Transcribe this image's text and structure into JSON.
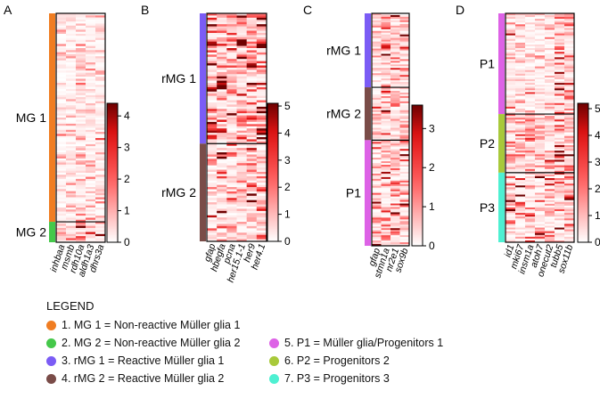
{
  "chart_data": [
    {
      "type": "heatmap",
      "panel": "A",
      "columns": [
        "inhbaa",
        "msmb",
        "rdh10a",
        "aldh1a3",
        "dhrs3a"
      ],
      "groups": [
        {
          "label": "MG 1",
          "color": "#f07d22",
          "rows": 102
        },
        {
          "label": "MG 2",
          "color": "#45c84a",
          "rows": 10
        }
      ],
      "colorbar": {
        "ticks": [
          0,
          1,
          2,
          3,
          4
        ],
        "range": [
          0,
          4.4
        ]
      },
      "column_mean_expression": {
        "MG 1": [
          0.5,
          0.6,
          0.7,
          0.6,
          0.5
        ],
        "MG 2": [
          1.3,
          0.9,
          2.2,
          1.2,
          0.7
        ]
      }
    },
    {
      "type": "heatmap",
      "panel": "B",
      "columns": [
        "gfap",
        "hbegfa",
        "pcna",
        "her15.1-1",
        "her9",
        "her4.1"
      ],
      "groups": [
        {
          "label": "rMG 1",
          "color": "#7b5cf5",
          "rows": 60
        },
        {
          "label": "rMG 2",
          "color": "#7a4c48",
          "rows": 45
        }
      ],
      "colorbar": {
        "ticks": [
          0,
          1,
          2,
          3,
          4,
          5
        ],
        "range": [
          0,
          5.1
        ]
      },
      "column_mean_expression": {
        "rMG 1": [
          2.6,
          2.2,
          2.3,
          2.5,
          2.8,
          3.0
        ],
        "rMG 2": [
          1.0,
          1.5,
          1.4,
          1.0,
          1.7,
          1.8
        ]
      }
    },
    {
      "type": "heatmap",
      "panel": "C",
      "columns": [
        "gfap",
        "stmn1a",
        "nr2e1",
        "sox9b"
      ],
      "groups": [
        {
          "label": "rMG 1",
          "color": "#7b5cf5",
          "rows": 42
        },
        {
          "label": "rMG 2",
          "color": "#7a4c48",
          "rows": 30
        },
        {
          "label": "P1",
          "color": "#dd62e6",
          "rows": 60
        }
      ],
      "colorbar": {
        "ticks": [
          0,
          1,
          2,
          3
        ],
        "range": [
          0,
          3.6
        ]
      },
      "column_mean_expression": {
        "rMG 1": [
          0.8,
          0.9,
          1.0,
          1.1
        ],
        "rMG 2": [
          0.7,
          0.8,
          0.9,
          0.9
        ],
        "P1": [
          1.1,
          1.2,
          1.4,
          1.0
        ]
      }
    },
    {
      "type": "heatmap",
      "panel": "D",
      "columns": [
        "id1",
        "mki67",
        "insm1a",
        "atoh7",
        "onecut2",
        "tubb5",
        "sox11b"
      ],
      "groups": [
        {
          "label": "P1",
          "color": "#dd62e6",
          "rows": 55
        },
        {
          "label": "P2",
          "color": "#a8c93a",
          "rows": 32
        },
        {
          "label": "P3",
          "color": "#4ef0d2",
          "rows": 38
        }
      ],
      "colorbar": {
        "ticks": [
          0,
          1,
          2,
          3,
          4,
          5
        ],
        "range": [
          0,
          5.2
        ]
      },
      "column_mean_expression": {
        "P1": [
          1.2,
          0.7,
          0.6,
          0.8,
          0.9,
          1.6,
          1.3
        ],
        "P2": [
          1.1,
          2.0,
          1.8,
          1.5,
          1.6,
          2.0,
          1.9
        ],
        "P3": [
          1.5,
          1.2,
          1.3,
          1.4,
          1.2,
          2.1,
          1.8
        ]
      }
    }
  ],
  "legend": {
    "title": "LEGEND",
    "items": [
      {
        "label": "1. MG 1 = Non-reactive Müller glia 1",
        "color": "#f07d22"
      },
      {
        "label": "2. MG 2 = Non-reactive Müller glia 2",
        "color": "#45c84a"
      },
      {
        "label": "3. rMG 1 = Reactive Müller glia 1",
        "color": "#7b5cf5"
      },
      {
        "label": "4. rMG 2 = Reactive Müller glia 2",
        "color": "#7a4c48"
      },
      {
        "label": "5. P1 = Müller glia/Progenitors 1",
        "color": "#dd62e6"
      },
      {
        "label": "6. P2 = Progenitors 2",
        "color": "#a8c93a"
      },
      {
        "label": "7. P3 = Progenitors 3",
        "color": "#4ef0d2"
      }
    ]
  }
}
